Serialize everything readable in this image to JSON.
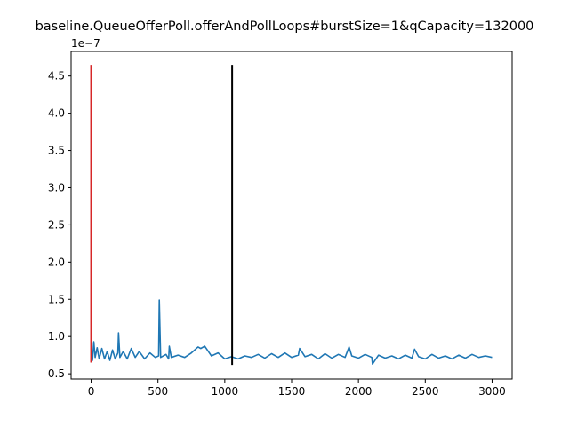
{
  "chart_data": {
    "type": "line",
    "title": "baseline.QueueOfferPoll.offerAndPollLoops#burstSize=1&qCapacity=132000",
    "xlabel": "",
    "ylabel": "",
    "y_offset_label": "1e−7",
    "xlim": [
      -150,
      3150
    ],
    "ylim": [
      4.3e-08,
      4.83e-07
    ],
    "x_ticks": [
      0,
      500,
      1000,
      1500,
      2000,
      2500,
      3000
    ],
    "x_tick_labels": [
      "0",
      "500",
      "1000",
      "1500",
      "2000",
      "2500",
      "3000"
    ],
    "y_ticks": [
      5e-08,
      1e-07,
      1.5e-07,
      2e-07,
      2.5e-07,
      3e-07,
      3.5e-07,
      4e-07,
      4.5e-07
    ],
    "y_tick_labels": [
      "0.5",
      "1.0",
      "1.5",
      "2.0",
      "2.5",
      "3.0",
      "3.5",
      "4.0",
      "4.5"
    ],
    "grid": false,
    "series": [
      {
        "color": "#1f77b4",
        "x": [
          0,
          5,
          10,
          20,
          30,
          45,
          60,
          80,
          100,
          120,
          140,
          160,
          180,
          200,
          205,
          215,
          240,
          270,
          300,
          330,
          360,
          400,
          440,
          480,
          505,
          510,
          520,
          560,
          580,
          585,
          600,
          650,
          700,
          750,
          800,
          820,
          850,
          900,
          950,
          1000,
          1050,
          1100,
          1150,
          1200,
          1250,
          1300,
          1350,
          1400,
          1450,
          1500,
          1550,
          1560,
          1600,
          1650,
          1700,
          1750,
          1800,
          1850,
          1900,
          1930,
          1950,
          2000,
          2050,
          2100,
          2105,
          2150,
          2200,
          2250,
          2300,
          2350,
          2400,
          2420,
          2450,
          2500,
          2550,
          2600,
          2650,
          2700,
          2750,
          2800,
          2850,
          2900,
          2950,
          3000
        ],
        "y": [
          7e-08,
          7.5e-08,
          6.8e-08,
          9.3e-08,
          7.2e-08,
          8.5e-08,
          7e-08,
          8.4e-08,
          7e-08,
          8e-08,
          6.8e-08,
          8.2e-08,
          7e-08,
          7.8e-08,
          1.05e-07,
          7.2e-08,
          8e-08,
          7e-08,
          8.4e-08,
          7.2e-08,
          8e-08,
          7e-08,
          7.8e-08,
          7.2e-08,
          7.4e-08,
          1.49e-07,
          7.2e-08,
          7.6e-08,
          7e-08,
          8.7e-08,
          7.2e-08,
          7.5e-08,
          7.2e-08,
          7.8e-08,
          8.6e-08,
          8.4e-08,
          8.7e-08,
          7.4e-08,
          7.8e-08,
          7e-08,
          7.3e-08,
          7e-08,
          7.4e-08,
          7.2e-08,
          7.6e-08,
          7.1e-08,
          7.7e-08,
          7.2e-08,
          7.8e-08,
          7.2e-08,
          7.5e-08,
          8.4e-08,
          7.3e-08,
          7.6e-08,
          7e-08,
          7.7e-08,
          7.1e-08,
          7.6e-08,
          7.2e-08,
          8.6e-08,
          7.4e-08,
          7.1e-08,
          7.6e-08,
          7.2e-08,
          6.3e-08,
          7.5e-08,
          7.1e-08,
          7.4e-08,
          7e-08,
          7.5e-08,
          7.1e-08,
          8.3e-08,
          7.3e-08,
          7e-08,
          7.6e-08,
          7.1e-08,
          7.4e-08,
          7e-08,
          7.5e-08,
          7.1e-08,
          7.6e-08,
          7.2e-08,
          7.4e-08,
          7.2e-08
        ]
      }
    ],
    "vertical_lines": [
      {
        "color": "#d62728",
        "x": 0,
        "y0": 6.5e-08,
        "y1": 4.65e-07
      },
      {
        "color": "#000000",
        "x": 1055,
        "y0": 6.2e-08,
        "y1": 4.65e-07
      }
    ]
  }
}
